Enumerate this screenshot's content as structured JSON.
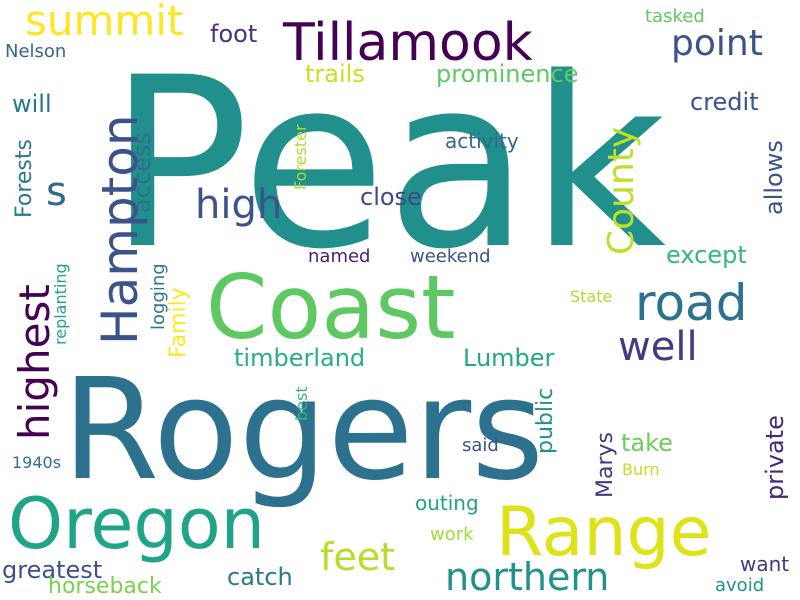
{
  "words": [
    {
      "text": "Peak",
      "color": "#21908d"
    },
    {
      "text": "Rogers",
      "color": "#2c728e"
    },
    {
      "text": "Coast",
      "color": "#5ec962"
    },
    {
      "text": "Range",
      "color": "#dde318"
    },
    {
      "text": "Tillamook",
      "color": "#440154"
    },
    {
      "text": "Oregon",
      "color": "#20a486"
    },
    {
      "text": "Hampton",
      "color": "#3b528b"
    },
    {
      "text": "road",
      "color": "#2c728e"
    },
    {
      "text": "highest",
      "color": "#440154"
    },
    {
      "text": "summit",
      "color": "#fde725"
    },
    {
      "text": "feet",
      "color": "#b5de2b"
    },
    {
      "text": "northern",
      "color": "#21918c"
    },
    {
      "text": "high",
      "color": "#3b528b"
    },
    {
      "text": "point",
      "color": "#3b528b"
    },
    {
      "text": "well",
      "color": "#443983"
    },
    {
      "text": "s",
      "color": "#31688e"
    },
    {
      "text": "County",
      "color": "#bddf26"
    },
    {
      "text": "trails",
      "color": "#c8e020"
    },
    {
      "text": "prominence",
      "color": "#5ec962"
    },
    {
      "text": "credit",
      "color": "#3b528b"
    },
    {
      "text": "will",
      "color": "#2a788e"
    },
    {
      "text": "access",
      "color": "#2c728e"
    },
    {
      "text": "foot",
      "color": "#46327e"
    },
    {
      "text": "close",
      "color": "#3e4989"
    },
    {
      "text": "except",
      "color": "#35b779"
    },
    {
      "text": "allows",
      "color": "#3b528b"
    },
    {
      "text": "timberland",
      "color": "#29af7f"
    },
    {
      "text": "Lumber",
      "color": "#22a884"
    },
    {
      "text": "greatest",
      "color": "#3b528b"
    },
    {
      "text": "catch",
      "color": "#2a788e"
    },
    {
      "text": "take",
      "color": "#6ccd5a"
    },
    {
      "text": "private",
      "color": "#482878"
    },
    {
      "text": "Marys",
      "color": "#443a83"
    },
    {
      "text": "public",
      "color": "#21918c"
    },
    {
      "text": "Forests",
      "color": "#2a788e"
    },
    {
      "text": "Family",
      "color": "#fde725"
    },
    {
      "text": "logging",
      "color": "#2a788e"
    },
    {
      "text": "Forester",
      "color": "#addc30"
    },
    {
      "text": "activity",
      "color": "#31688e"
    },
    {
      "text": "named",
      "color": "#482173"
    },
    {
      "text": "weekend",
      "color": "#3b528b"
    },
    {
      "text": "State",
      "color": "#addc30"
    },
    {
      "text": "replanting",
      "color": "#20a486"
    },
    {
      "text": "best",
      "color": "#35b779"
    },
    {
      "text": "said",
      "color": "#3b528b"
    },
    {
      "text": "Burn",
      "color": "#c2df23"
    },
    {
      "text": "1940s",
      "color": "#2c728e"
    },
    {
      "text": "Nelson",
      "color": "#31688e"
    },
    {
      "text": "tasked",
      "color": "#5ec962"
    },
    {
      "text": "outing",
      "color": "#20a486"
    },
    {
      "text": "work",
      "color": "#a2da37"
    },
    {
      "text": "want",
      "color": "#443983"
    },
    {
      "text": "avoid",
      "color": "#21918c"
    },
    {
      "text": "horseback",
      "color": "#7ad151"
    }
  ]
}
